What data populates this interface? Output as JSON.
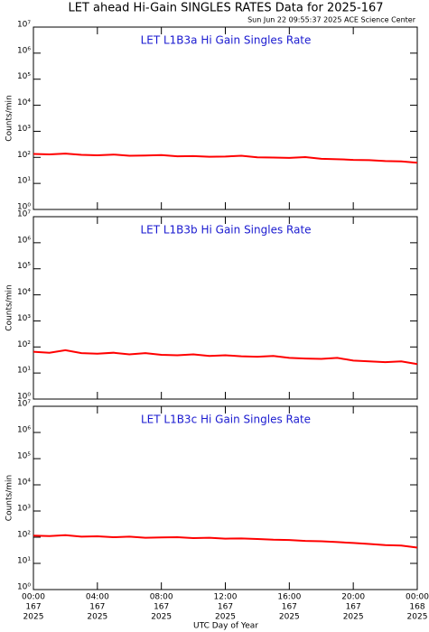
{
  "title": "LET ahead Hi-Gain SINGLES RATES Data for 2025-167",
  "subtitle": "Sun Jun 22 09:55:37 2025 ACE Science Center",
  "xlabel": "UTC Day of Year",
  "chart_data": [
    {
      "type": "line",
      "title": "LET L1B3a Hi Gain Singles Rate",
      "ylabel": "Counts/min",
      "log_y": true,
      "x": [
        0,
        1,
        2,
        3,
        4,
        5,
        6,
        7,
        8,
        9,
        10,
        11,
        12,
        13,
        14,
        15,
        16,
        17,
        18,
        19,
        20,
        21,
        22,
        23,
        24
      ],
      "series": [
        {
          "color": "#ff0000",
          "values": [
            135,
            130,
            140,
            125,
            120,
            128,
            115,
            118,
            122,
            110,
            112,
            105,
            108,
            115,
            100,
            98,
            95,
            102,
            88,
            85,
            80,
            78,
            72,
            70,
            62
          ]
        }
      ],
      "xlim": [
        0,
        24
      ],
      "xticks": [
        0,
        4,
        8,
        12,
        16,
        20,
        24
      ],
      "ylim": [
        1,
        10000000
      ],
      "yticks": [
        {
          "value": 1,
          "label": "10⁰"
        },
        {
          "value": 10,
          "label": "10¹"
        },
        {
          "value": 100,
          "label": "10²"
        },
        {
          "value": 1000,
          "label": "10³"
        },
        {
          "value": 10000,
          "label": "10⁴"
        },
        {
          "value": 100000,
          "label": "10⁵"
        },
        {
          "value": 1000000,
          "label": "10⁶"
        },
        {
          "value": 10000000,
          "label": "10⁷"
        }
      ]
    },
    {
      "type": "line",
      "title": "LET L1B3b Hi Gain Singles Rate",
      "ylabel": "Counts/min",
      "log_y": true,
      "x": [
        0,
        1,
        2,
        3,
        4,
        5,
        6,
        7,
        8,
        9,
        10,
        11,
        12,
        13,
        14,
        15,
        16,
        17,
        18,
        19,
        20,
        21,
        22,
        23,
        24
      ],
      "series": [
        {
          "color": "#ff0000",
          "values": [
            65,
            60,
            75,
            58,
            55,
            60,
            52,
            58,
            50,
            48,
            52,
            45,
            48,
            44,
            42,
            45,
            38,
            36,
            35,
            38,
            30,
            28,
            26,
            28,
            22
          ]
        }
      ],
      "xlim": [
        0,
        24
      ],
      "xticks": [
        0,
        4,
        8,
        12,
        16,
        20,
        24
      ],
      "ylim": [
        1,
        10000000
      ],
      "yticks": [
        {
          "value": 1,
          "label": "10⁰"
        },
        {
          "value": 10,
          "label": "10¹"
        },
        {
          "value": 100,
          "label": "10²"
        },
        {
          "value": 1000,
          "label": "10³"
        },
        {
          "value": 10000,
          "label": "10⁴"
        },
        {
          "value": 100000,
          "label": "10⁵"
        },
        {
          "value": 1000000,
          "label": "10⁶"
        },
        {
          "value": 10000000,
          "label": "10⁷"
        }
      ]
    },
    {
      "type": "line",
      "title": "LET L1B3c Hi Gain Singles Rate",
      "ylabel": "Counts/min",
      "log_y": true,
      "x": [
        0,
        1,
        2,
        3,
        4,
        5,
        6,
        7,
        8,
        9,
        10,
        11,
        12,
        13,
        14,
        15,
        16,
        17,
        18,
        19,
        20,
        21,
        22,
        23,
        24
      ],
      "series": [
        {
          "color": "#ff0000",
          "values": [
            115,
            110,
            120,
            105,
            108,
            100,
            105,
            95,
            98,
            100,
            92,
            95,
            88,
            90,
            85,
            80,
            78,
            72,
            70,
            65,
            60,
            55,
            50,
            48,
            40
          ]
        }
      ],
      "xlim": [
        0,
        24
      ],
      "xticks": [
        {
          "value": 0,
          "label": "00:00"
        },
        {
          "value": 4,
          "label": "04:00"
        },
        {
          "value": 8,
          "label": "08:00"
        },
        {
          "value": 12,
          "label": "12:00"
        },
        {
          "value": 16,
          "label": "16:00"
        },
        {
          "value": 20,
          "label": "20:00"
        },
        {
          "value": 24,
          "label": "00:00"
        }
      ],
      "xtick_day_labels": [
        "167",
        "167",
        "167",
        "167",
        "167",
        "167",
        "168"
      ],
      "xtick_year_labels": [
        "2025",
        "2025",
        "2025",
        "2025",
        "2025",
        "2025",
        "2025"
      ],
      "ylim": [
        1,
        10000000
      ],
      "yticks": [
        {
          "value": 1,
          "label": "10⁰"
        },
        {
          "value": 10,
          "label": "10¹"
        },
        {
          "value": 100,
          "label": "10²"
        },
        {
          "value": 1000,
          "label": "10³"
        },
        {
          "value": 10000,
          "label": "10⁴"
        },
        {
          "value": 100000,
          "label": "10⁵"
        },
        {
          "value": 1000000,
          "label": "10⁶"
        },
        {
          "value": 10000000,
          "label": "10⁷"
        }
      ]
    }
  ]
}
